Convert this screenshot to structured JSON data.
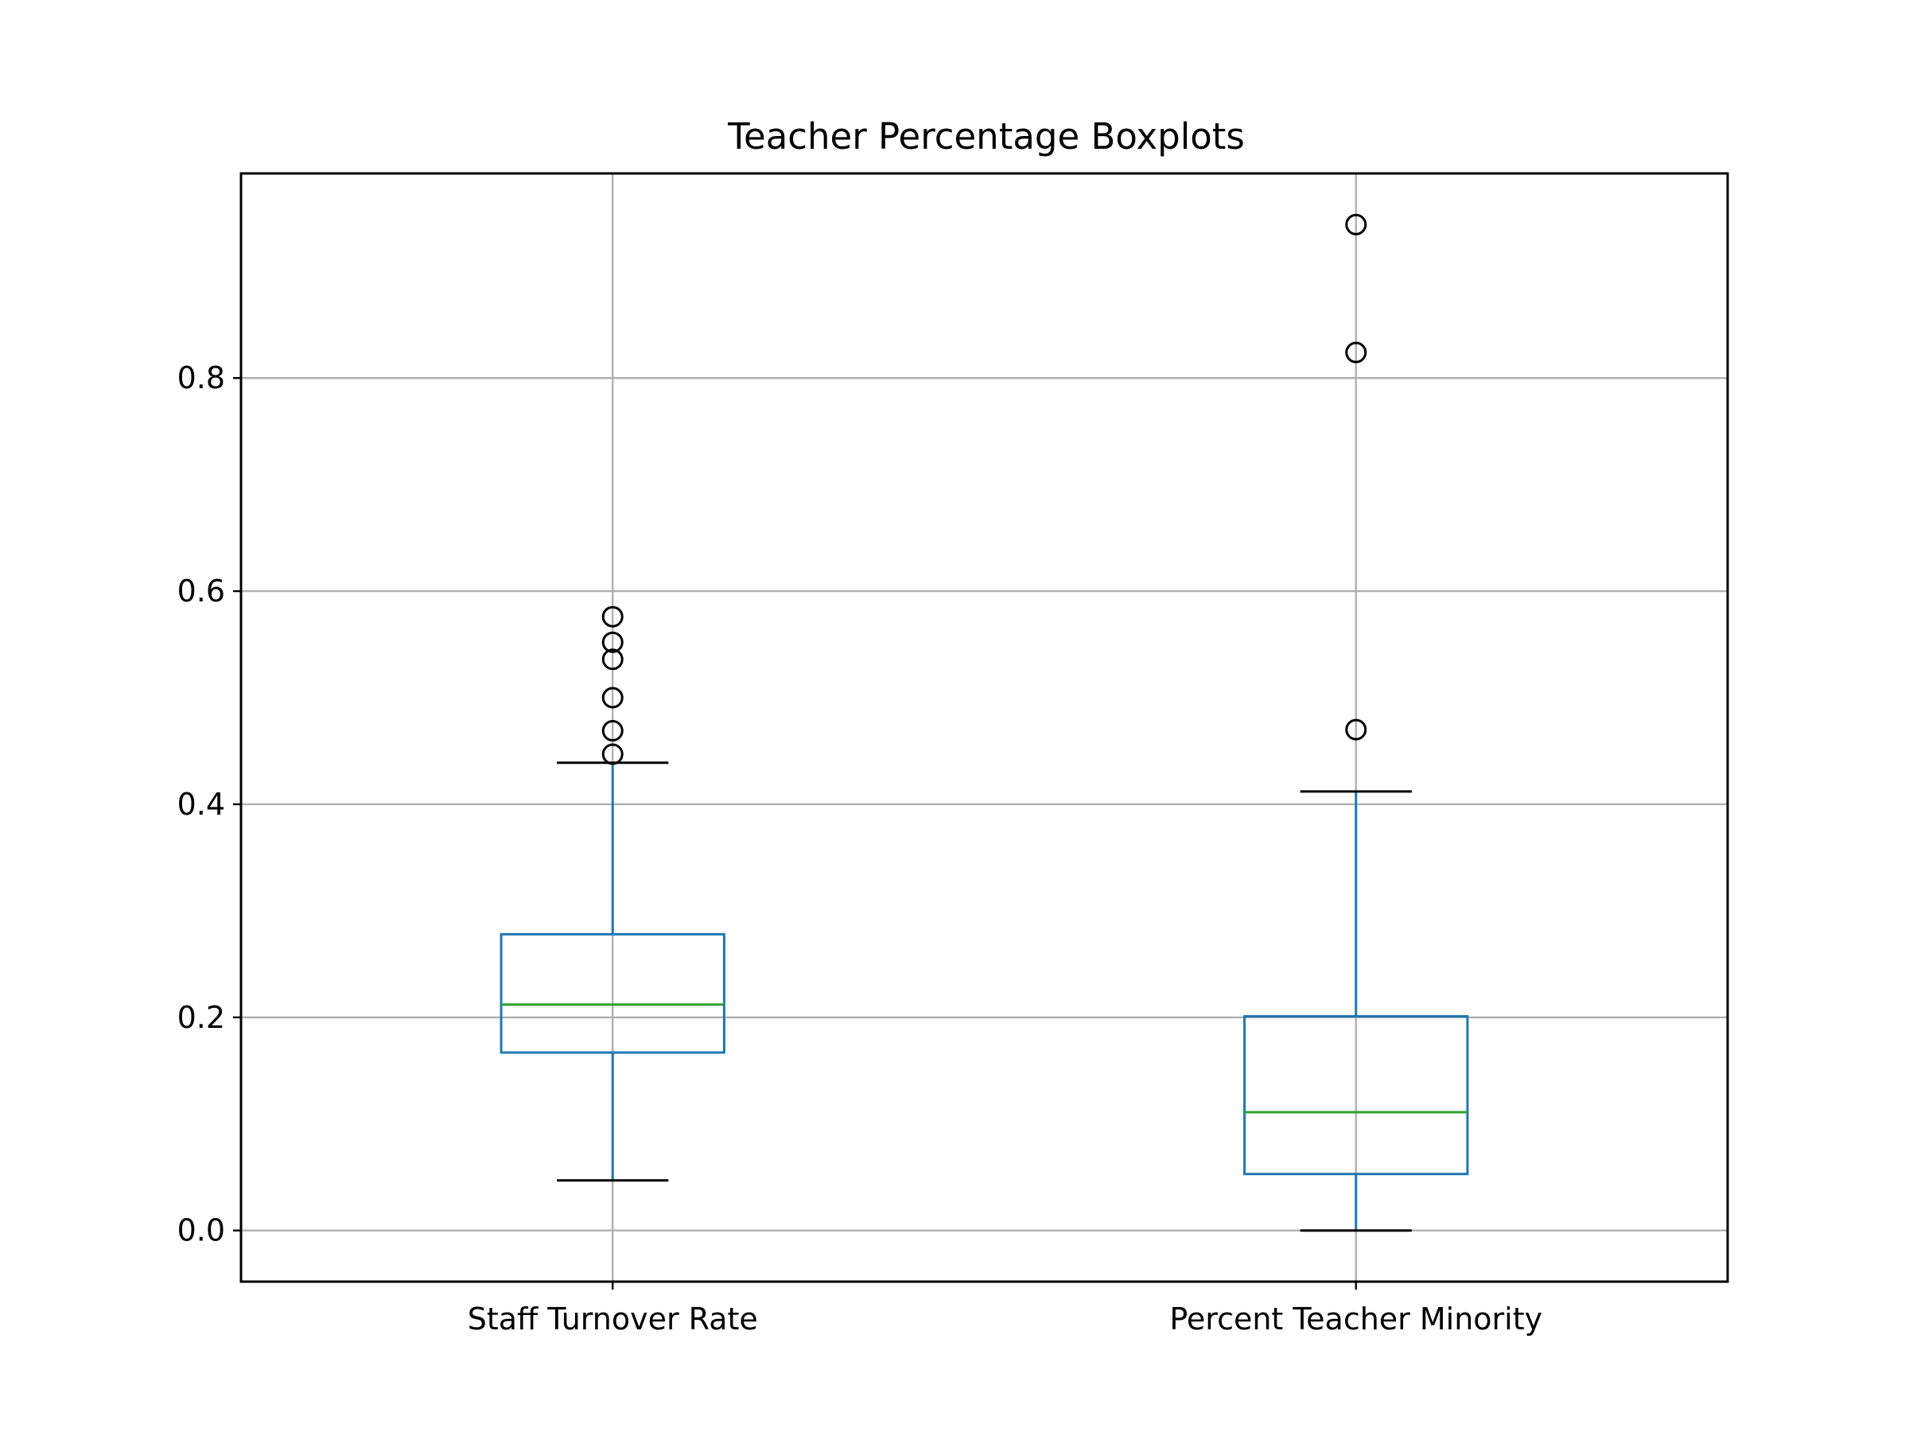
{
  "chart_data": {
    "type": "box",
    "title": "Teacher Percentage Boxplots",
    "xlabel": "",
    "ylabel": "",
    "categories": [
      "Staff Turnover Rate",
      "Percent Teacher Minority"
    ],
    "ylim": [
      -0.048,
      0.992
    ],
    "yticks": [
      0.0,
      0.2,
      0.4,
      0.6,
      0.8
    ],
    "ytick_labels": [
      "0.0",
      "0.2",
      "0.4",
      "0.6",
      "0.8"
    ],
    "grid": true,
    "boxes": [
      {
        "label": "Staff Turnover Rate",
        "whisker_low": 0.047,
        "q1": 0.167,
        "median": 0.212,
        "q3": 0.278,
        "whisker_high": 0.439,
        "outliers": [
          0.447,
          0.469,
          0.5,
          0.536,
          0.552,
          0.576
        ]
      },
      {
        "label": "Percent Teacher Minority",
        "whisker_low": 0.0,
        "q1": 0.053,
        "median": 0.111,
        "q3": 0.201,
        "whisker_high": 0.412,
        "outliers": [
          0.47,
          0.824,
          0.944
        ]
      }
    ],
    "colors": {
      "box": "#1f77b4",
      "median": "#2ca02c",
      "whisker_cap": "#000000",
      "grid": "#b0b0b0",
      "outlier": "#000000"
    }
  }
}
